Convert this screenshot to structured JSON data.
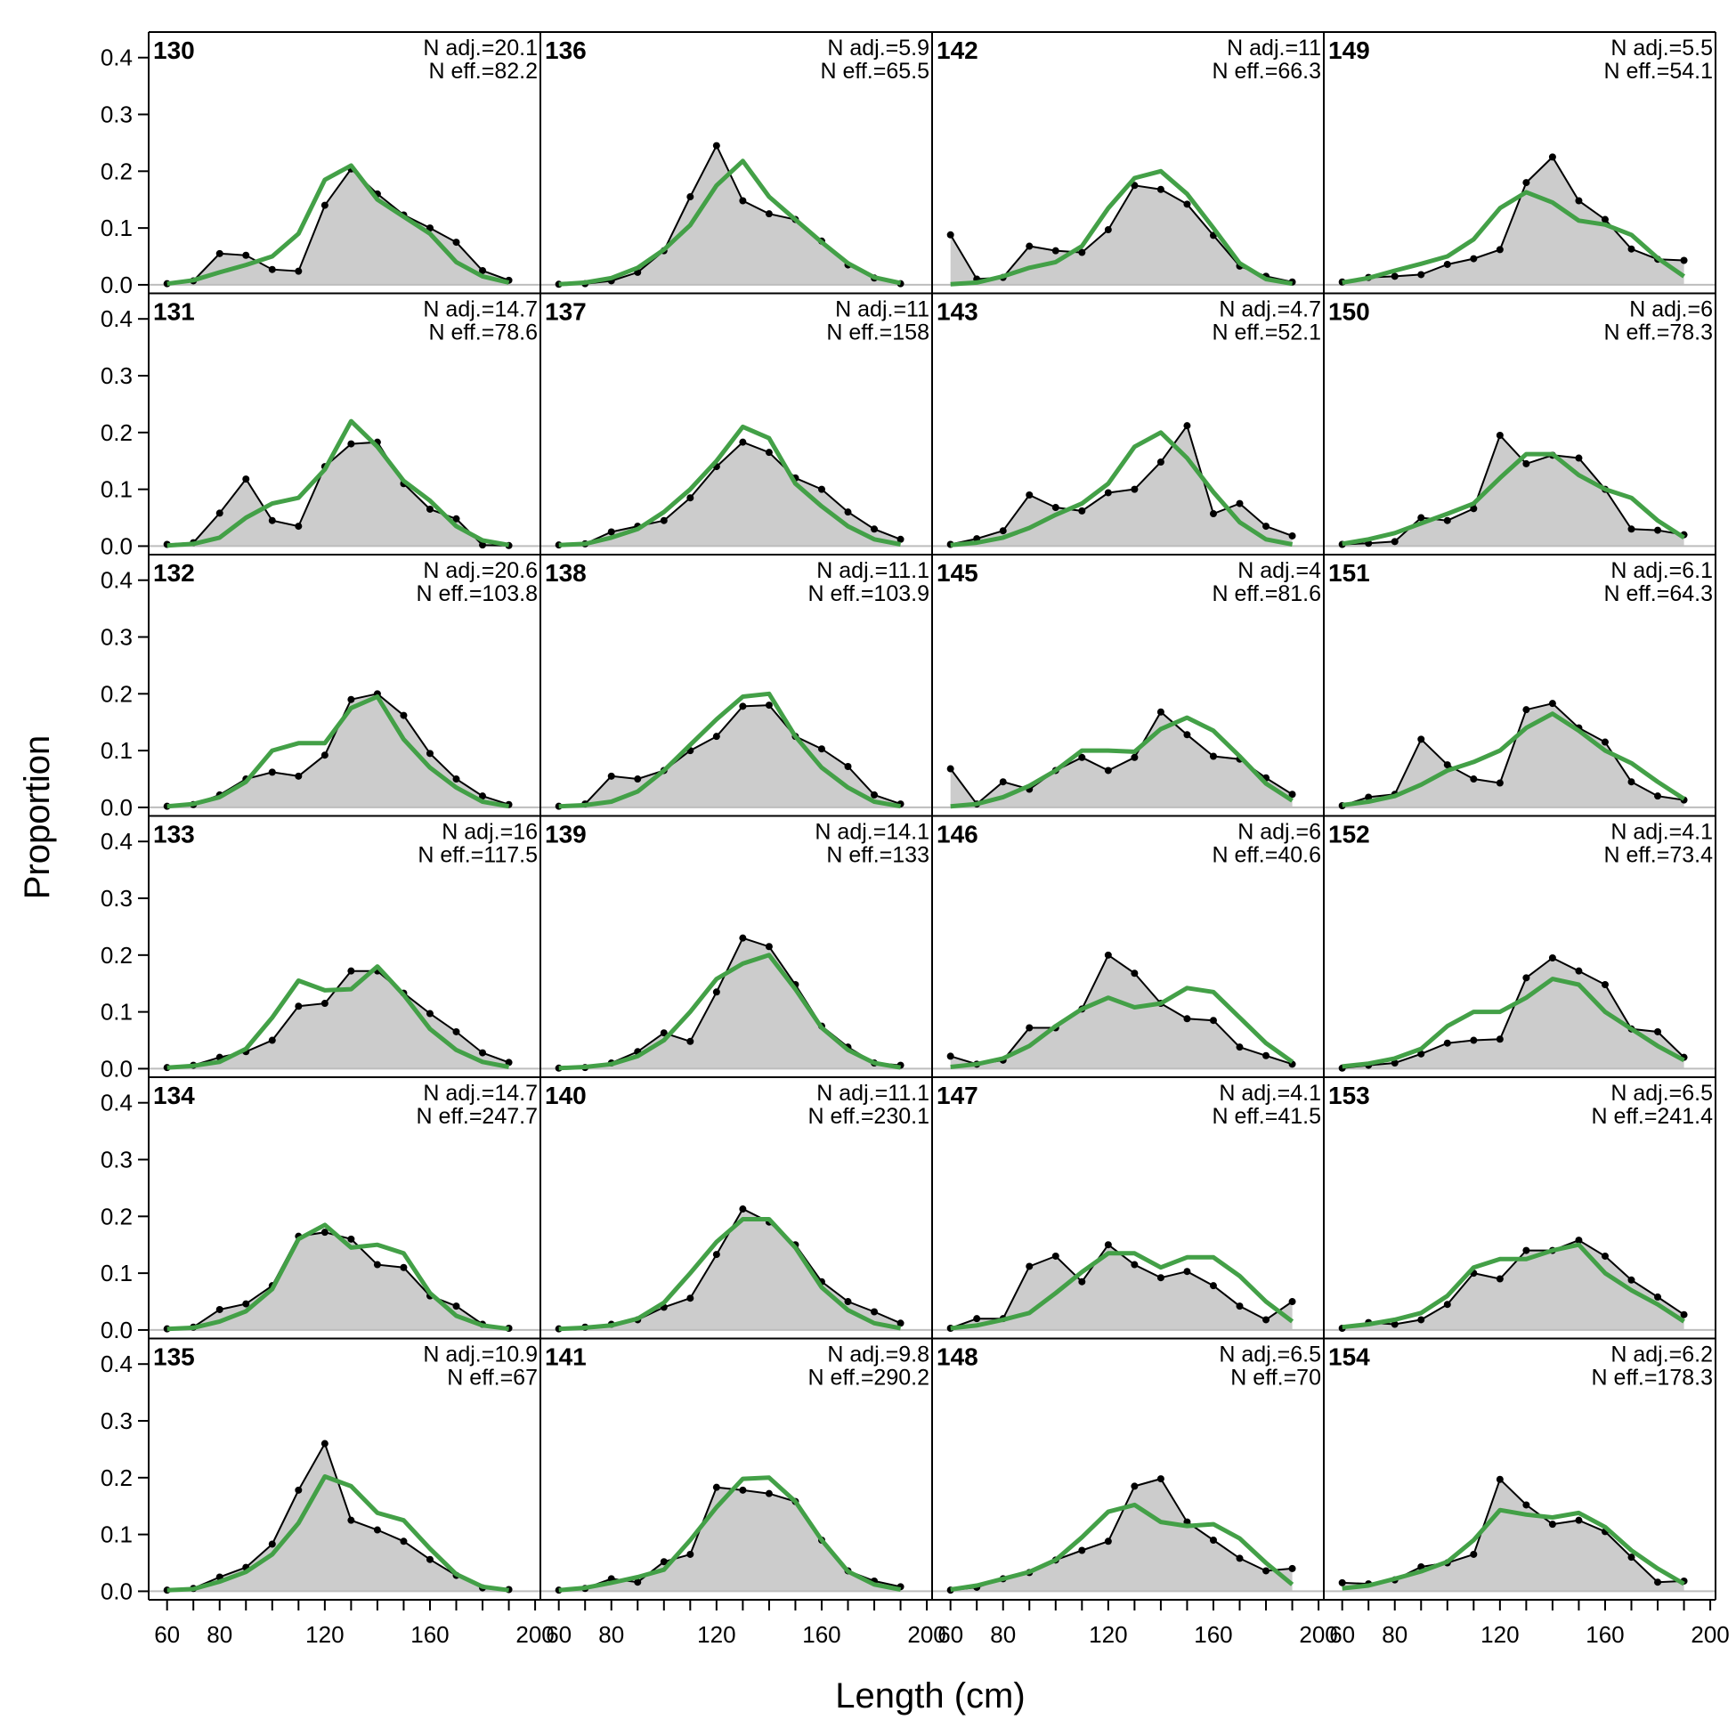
{
  "chart_data": {
    "type": "area",
    "xlabel": "Length (cm)",
    "ylabel": "Proportion",
    "xlim": [
      53,
      202
    ],
    "ylim": [
      -0.015,
      0.445
    ],
    "x_ticks": [
      "60",
      "80",
      "120",
      "160",
      "200"
    ],
    "x_tick_values": [
      60,
      80,
      120,
      160,
      200
    ],
    "y_ticks": [
      "0.0",
      "0.1",
      "0.2",
      "0.3",
      "0.4"
    ],
    "y_tick_values": [
      0,
      0.1,
      0.2,
      0.3,
      0.4
    ],
    "grid": false,
    "colors": {
      "observed_fill": "#cccccc",
      "observed_line": "#000000",
      "expected_line": "#43a047",
      "zero_line": "#bdbdbd"
    },
    "series": [
      {
        "name": "observed"
      },
      {
        "name": "expected"
      }
    ],
    "x": [
      60,
      70,
      80,
      90,
      100,
      110,
      120,
      130,
      140,
      150,
      160,
      170,
      180,
      190
    ],
    "panels": [
      {
        "id": "130",
        "n_adj": "N adj.=20.1",
        "n_eff": "N eff.=82.2",
        "obs": [
          0.002,
          0.007,
          0.055,
          0.052,
          0.027,
          0.024,
          0.14,
          0.204,
          0.16,
          0.123,
          0.1,
          0.075,
          0.025,
          0.008
        ],
        "exp": [
          0.002,
          0.008,
          0.022,
          0.035,
          0.05,
          0.09,
          0.185,
          0.21,
          0.15,
          0.12,
          0.09,
          0.04,
          0.015,
          0.004
        ]
      },
      {
        "id": "131",
        "n_adj": "N adj.=14.7",
        "n_eff": "N eff.=78.6",
        "obs": [
          0.003,
          0.006,
          0.058,
          0.118,
          0.045,
          0.035,
          0.14,
          0.18,
          0.183,
          0.11,
          0.065,
          0.048,
          0.002,
          0.001
        ],
        "exp": [
          0.001,
          0.004,
          0.015,
          0.05,
          0.075,
          0.085,
          0.135,
          0.22,
          0.175,
          0.115,
          0.08,
          0.035,
          0.01,
          0.002
        ]
      },
      {
        "id": "132",
        "n_adj": "N adj.=20.6",
        "n_eff": "N eff.=103.8",
        "obs": [
          0.002,
          0.005,
          0.022,
          0.05,
          0.062,
          0.055,
          0.092,
          0.19,
          0.2,
          0.162,
          0.095,
          0.05,
          0.02,
          0.005
        ],
        "exp": [
          0.002,
          0.006,
          0.018,
          0.045,
          0.1,
          0.113,
          0.113,
          0.175,
          0.195,
          0.12,
          0.07,
          0.035,
          0.01,
          0.002
        ]
      },
      {
        "id": "133",
        "n_adj": "N adj.=16",
        "n_eff": "N eff.=117.5",
        "obs": [
          0.002,
          0.006,
          0.02,
          0.03,
          0.05,
          0.11,
          0.115,
          0.172,
          0.172,
          0.133,
          0.097,
          0.065,
          0.028,
          0.011
        ],
        "exp": [
          0.002,
          0.005,
          0.012,
          0.035,
          0.09,
          0.155,
          0.138,
          0.14,
          0.18,
          0.13,
          0.07,
          0.033,
          0.012,
          0.003
        ]
      },
      {
        "id": "134",
        "n_adj": "N adj.=14.7",
        "n_eff": "N eff.=247.7",
        "obs": [
          0.002,
          0.005,
          0.036,
          0.046,
          0.078,
          0.165,
          0.172,
          0.16,
          0.115,
          0.11,
          0.06,
          0.042,
          0.01,
          0.003
        ],
        "exp": [
          0.002,
          0.004,
          0.015,
          0.033,
          0.072,
          0.16,
          0.185,
          0.145,
          0.15,
          0.135,
          0.065,
          0.025,
          0.008,
          0.002
        ]
      },
      {
        "id": "135",
        "n_adj": "N adj.=10.9",
        "n_eff": "N eff.=67",
        "obs": [
          0.002,
          0.005,
          0.025,
          0.042,
          0.083,
          0.178,
          0.26,
          0.125,
          0.108,
          0.088,
          0.056,
          0.028,
          0.006,
          0.003
        ],
        "exp": [
          0.002,
          0.004,
          0.017,
          0.034,
          0.065,
          0.12,
          0.202,
          0.185,
          0.138,
          0.125,
          0.075,
          0.03,
          0.008,
          0.002
        ]
      },
      {
        "id": "136",
        "n_adj": "N adj.=5.9",
        "n_eff": "N eff.=65.5",
        "obs": [
          0.001,
          0.002,
          0.007,
          0.022,
          0.06,
          0.155,
          0.245,
          0.148,
          0.125,
          0.115,
          0.077,
          0.035,
          0.012,
          0.002
        ],
        "exp": [
          0.001,
          0.004,
          0.012,
          0.03,
          0.062,
          0.105,
          0.175,
          0.218,
          0.155,
          0.115,
          0.075,
          0.038,
          0.013,
          0.003
        ]
      },
      {
        "id": "137",
        "n_adj": "N adj.=11",
        "n_eff": "N eff.=158",
        "obs": [
          0.002,
          0.004,
          0.025,
          0.035,
          0.045,
          0.085,
          0.14,
          0.183,
          0.165,
          0.12,
          0.1,
          0.06,
          0.03,
          0.012
        ],
        "exp": [
          0.002,
          0.004,
          0.015,
          0.03,
          0.06,
          0.1,
          0.15,
          0.21,
          0.19,
          0.11,
          0.07,
          0.035,
          0.012,
          0.003
        ]
      },
      {
        "id": "138",
        "n_adj": "N adj.=11.1",
        "n_eff": "N eff.=103.9",
        "obs": [
          0.002,
          0.006,
          0.055,
          0.05,
          0.065,
          0.1,
          0.125,
          0.178,
          0.18,
          0.125,
          0.103,
          0.072,
          0.022,
          0.006
        ],
        "exp": [
          0.002,
          0.004,
          0.01,
          0.028,
          0.065,
          0.11,
          0.155,
          0.195,
          0.2,
          0.125,
          0.07,
          0.035,
          0.01,
          0.002
        ]
      },
      {
        "id": "139",
        "n_adj": "N adj.=14.1",
        "n_eff": "N eff.=133",
        "obs": [
          0.001,
          0.002,
          0.01,
          0.03,
          0.063,
          0.048,
          0.135,
          0.23,
          0.215,
          0.148,
          0.075,
          0.038,
          0.01,
          0.006
        ],
        "exp": [
          0.001,
          0.003,
          0.008,
          0.022,
          0.05,
          0.1,
          0.158,
          0.185,
          0.2,
          0.14,
          0.072,
          0.033,
          0.01,
          0.002
        ]
      },
      {
        "id": "140",
        "n_adj": "N adj.=11.1",
        "n_eff": "N eff.=230.1",
        "obs": [
          0.002,
          0.005,
          0.01,
          0.018,
          0.04,
          0.056,
          0.133,
          0.213,
          0.19,
          0.15,
          0.085,
          0.05,
          0.032,
          0.012
        ],
        "exp": [
          0.002,
          0.004,
          0.008,
          0.02,
          0.048,
          0.1,
          0.155,
          0.195,
          0.195,
          0.145,
          0.075,
          0.035,
          0.012,
          0.003
        ]
      },
      {
        "id": "141",
        "n_adj": "N adj.=9.8",
        "n_eff": "N eff.=290.2",
        "obs": [
          0.002,
          0.005,
          0.022,
          0.016,
          0.052,
          0.065,
          0.183,
          0.178,
          0.172,
          0.158,
          0.09,
          0.036,
          0.018,
          0.008
        ],
        "exp": [
          0.002,
          0.006,
          0.015,
          0.025,
          0.038,
          0.09,
          0.148,
          0.198,
          0.2,
          0.158,
          0.09,
          0.035,
          0.012,
          0.003
        ]
      },
      {
        "id": "142",
        "n_adj": "N adj.=11",
        "n_eff": "N eff.=66.3",
        "obs": [
          0.088,
          0.01,
          0.013,
          0.068,
          0.06,
          0.057,
          0.097,
          0.175,
          0.168,
          0.142,
          0.087,
          0.033,
          0.015,
          0.005
        ],
        "exp": [
          0.001,
          0.004,
          0.015,
          0.03,
          0.04,
          0.068,
          0.135,
          0.188,
          0.2,
          0.16,
          0.1,
          0.038,
          0.01,
          0.002
        ]
      },
      {
        "id": "143",
        "n_adj": "N adj.=4.7",
        "n_eff": "N eff.=52.1",
        "obs": [
          0.003,
          0.013,
          0.027,
          0.09,
          0.068,
          0.062,
          0.094,
          0.1,
          0.148,
          0.212,
          0.057,
          0.075,
          0.035,
          0.018
        ],
        "exp": [
          0.002,
          0.006,
          0.015,
          0.032,
          0.055,
          0.075,
          0.11,
          0.175,
          0.2,
          0.155,
          0.095,
          0.042,
          0.012,
          0.003
        ]
      },
      {
        "id": "145",
        "n_adj": "N adj.=4",
        "n_eff": "N eff.=81.6",
        "obs": [
          0.068,
          0.006,
          0.045,
          0.032,
          0.065,
          0.088,
          0.065,
          0.088,
          0.168,
          0.128,
          0.09,
          0.085,
          0.052,
          0.023
        ],
        "exp": [
          0.002,
          0.006,
          0.018,
          0.038,
          0.065,
          0.1,
          0.1,
          0.098,
          0.138,
          0.158,
          0.135,
          0.09,
          0.042,
          0.012
        ]
      },
      {
        "id": "146",
        "n_adj": "N adj.=6",
        "n_eff": "N eff.=40.6",
        "obs": [
          0.022,
          0.008,
          0.015,
          0.072,
          0.072,
          0.105,
          0.2,
          0.168,
          0.115,
          0.088,
          0.085,
          0.038,
          0.023,
          0.008
        ],
        "exp": [
          0.003,
          0.008,
          0.018,
          0.04,
          0.075,
          0.105,
          0.125,
          0.108,
          0.115,
          0.142,
          0.135,
          0.09,
          0.045,
          0.012
        ]
      },
      {
        "id": "147",
        "n_adj": "N adj.=4.1",
        "n_eff": "N eff.=41.5",
        "obs": [
          0.003,
          0.02,
          0.02,
          0.112,
          0.13,
          0.085,
          0.15,
          0.115,
          0.092,
          0.103,
          0.078,
          0.042,
          0.018,
          0.05
        ],
        "exp": [
          0.003,
          0.008,
          0.018,
          0.03,
          0.065,
          0.102,
          0.135,
          0.135,
          0.11,
          0.128,
          0.128,
          0.095,
          0.05,
          0.015
        ]
      },
      {
        "id": "148",
        "n_adj": "N adj.=6.5",
        "n_eff": "N eff.=70",
        "obs": [
          0.002,
          0.007,
          0.022,
          0.033,
          0.055,
          0.072,
          0.088,
          0.185,
          0.198,
          0.122,
          0.09,
          0.058,
          0.036,
          0.04
        ],
        "exp": [
          0.003,
          0.01,
          0.022,
          0.034,
          0.055,
          0.095,
          0.14,
          0.152,
          0.122,
          0.115,
          0.118,
          0.093,
          0.05,
          0.012
        ]
      },
      {
        "id": "149",
        "n_adj": "N adj.=5.5",
        "n_eff": "N eff.=54.1",
        "obs": [
          0.005,
          0.013,
          0.015,
          0.018,
          0.036,
          0.046,
          0.062,
          0.18,
          0.225,
          0.148,
          0.115,
          0.063,
          0.045,
          0.043
        ],
        "exp": [
          0.004,
          0.012,
          0.025,
          0.037,
          0.05,
          0.08,
          0.135,
          0.163,
          0.145,
          0.113,
          0.106,
          0.088,
          0.047,
          0.015
        ]
      },
      {
        "id": "150",
        "n_adj": "N adj.=6",
        "n_eff": "N eff.=78.3",
        "obs": [
          0.003,
          0.005,
          0.008,
          0.05,
          0.045,
          0.066,
          0.195,
          0.145,
          0.16,
          0.155,
          0.1,
          0.03,
          0.028,
          0.02
        ],
        "exp": [
          0.004,
          0.012,
          0.023,
          0.04,
          0.057,
          0.075,
          0.12,
          0.162,
          0.162,
          0.125,
          0.1,
          0.085,
          0.045,
          0.015
        ]
      },
      {
        "id": "151",
        "n_adj": "N adj.=6.1",
        "n_eff": "N eff.=64.3",
        "obs": [
          0.003,
          0.018,
          0.023,
          0.12,
          0.075,
          0.05,
          0.043,
          0.172,
          0.183,
          0.14,
          0.115,
          0.045,
          0.02,
          0.013
        ],
        "exp": [
          0.004,
          0.01,
          0.02,
          0.04,
          0.065,
          0.08,
          0.1,
          0.14,
          0.165,
          0.135,
          0.1,
          0.078,
          0.045,
          0.015
        ]
      },
      {
        "id": "152",
        "n_adj": "N adj.=4.1",
        "n_eff": "N eff.=73.4",
        "obs": [
          0.001,
          0.006,
          0.01,
          0.026,
          0.045,
          0.05,
          0.052,
          0.16,
          0.195,
          0.172,
          0.148,
          0.07,
          0.065,
          0.02
        ],
        "exp": [
          0.004,
          0.009,
          0.018,
          0.035,
          0.075,
          0.1,
          0.1,
          0.125,
          0.158,
          0.148,
          0.1,
          0.07,
          0.04,
          0.015
        ]
      },
      {
        "id": "153",
        "n_adj": "N adj.=6.5",
        "n_eff": "N eff.=241.4",
        "obs": [
          0.003,
          0.013,
          0.01,
          0.018,
          0.045,
          0.1,
          0.09,
          0.14,
          0.14,
          0.158,
          0.13,
          0.088,
          0.058,
          0.027
        ],
        "exp": [
          0.005,
          0.01,
          0.018,
          0.03,
          0.06,
          0.11,
          0.125,
          0.125,
          0.14,
          0.15,
          0.1,
          0.07,
          0.045,
          0.015
        ]
      },
      {
        "id": "154",
        "n_adj": "N adj.=6.2",
        "n_eff": "N eff.=178.3",
        "obs": [
          0.015,
          0.013,
          0.02,
          0.043,
          0.05,
          0.065,
          0.197,
          0.152,
          0.118,
          0.125,
          0.105,
          0.06,
          0.016,
          0.018
        ],
        "exp": [
          0.005,
          0.01,
          0.022,
          0.035,
          0.052,
          0.09,
          0.143,
          0.135,
          0.13,
          0.138,
          0.113,
          0.072,
          0.04,
          0.013
        ]
      }
    ]
  }
}
